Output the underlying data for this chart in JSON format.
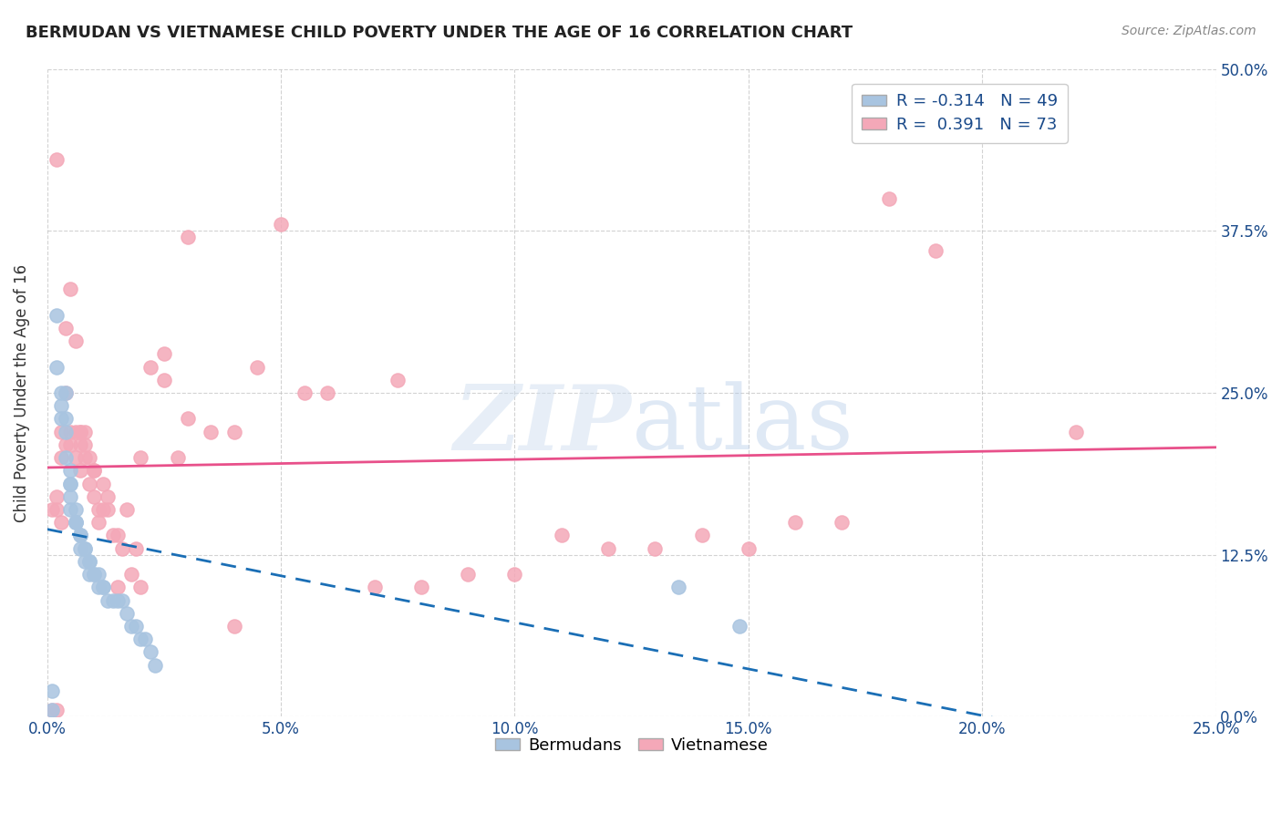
{
  "title": "BERMUDAN VS VIETNAMESE CHILD POVERTY UNDER THE AGE OF 16 CORRELATION CHART",
  "source": "Source: ZipAtlas.com",
  "ylabel": "Child Poverty Under the Age of 16",
  "xlabel_ticks": [
    "0.0%",
    "5.0%",
    "10.0%",
    "15.0%",
    "20.0%",
    "25.0%"
  ],
  "xlabel_vals": [
    0.0,
    0.05,
    0.1,
    0.15,
    0.2,
    0.25
  ],
  "ylabel_ticks": [
    "0.0%",
    "12.5%",
    "25.0%",
    "37.5%",
    "50.0%"
  ],
  "ylabel_vals": [
    0.0,
    0.125,
    0.25,
    0.375,
    0.5
  ],
  "xlim": [
    0.0,
    0.25
  ],
  "ylim": [
    0.0,
    0.5
  ],
  "bermuda_color": "#a8c4e0",
  "vietnamese_color": "#f4a8b8",
  "bermuda_line_color": "#1a6eb5",
  "vietnamese_line_color": "#e8508a",
  "legend_box_color": "#f0f0f0",
  "watermark": "ZIPatlas",
  "legend_r_bermuda": "R = -0.314",
  "legend_n_bermuda": "N = 49",
  "legend_r_vietnamese": "R =  0.391",
  "legend_n_vietnamese": "N = 73",
  "bermuda_R": -0.314,
  "bermuda_N": 49,
  "vietnamese_R": 0.391,
  "vietnamese_N": 73,
  "bermuda_x": [
    0.001,
    0.002,
    0.002,
    0.003,
    0.003,
    0.003,
    0.004,
    0.004,
    0.004,
    0.004,
    0.005,
    0.005,
    0.005,
    0.005,
    0.005,
    0.006,
    0.006,
    0.006,
    0.006,
    0.007,
    0.007,
    0.007,
    0.007,
    0.008,
    0.008,
    0.008,
    0.009,
    0.009,
    0.009,
    0.01,
    0.01,
    0.011,
    0.011,
    0.012,
    0.012,
    0.013,
    0.014,
    0.015,
    0.016,
    0.017,
    0.018,
    0.019,
    0.02,
    0.021,
    0.022,
    0.023,
    0.135,
    0.148,
    0.001
  ],
  "bermuda_y": [
    0.02,
    0.31,
    0.27,
    0.25,
    0.24,
    0.23,
    0.25,
    0.23,
    0.22,
    0.2,
    0.19,
    0.18,
    0.18,
    0.17,
    0.16,
    0.16,
    0.15,
    0.15,
    0.15,
    0.14,
    0.14,
    0.14,
    0.13,
    0.13,
    0.13,
    0.12,
    0.12,
    0.12,
    0.11,
    0.11,
    0.11,
    0.11,
    0.1,
    0.1,
    0.1,
    0.09,
    0.09,
    0.09,
    0.09,
    0.08,
    0.07,
    0.07,
    0.06,
    0.06,
    0.05,
    0.04,
    0.1,
    0.07,
    0.005
  ],
  "vietnamese_x": [
    0.001,
    0.002,
    0.002,
    0.003,
    0.003,
    0.004,
    0.004,
    0.004,
    0.005,
    0.005,
    0.006,
    0.006,
    0.006,
    0.007,
    0.007,
    0.007,
    0.008,
    0.008,
    0.008,
    0.009,
    0.009,
    0.01,
    0.01,
    0.011,
    0.011,
    0.012,
    0.012,
    0.013,
    0.013,
    0.014,
    0.015,
    0.016,
    0.017,
    0.018,
    0.019,
    0.02,
    0.022,
    0.025,
    0.028,
    0.03,
    0.035,
    0.04,
    0.045,
    0.05,
    0.055,
    0.06,
    0.07,
    0.075,
    0.08,
    0.09,
    0.1,
    0.11,
    0.12,
    0.13,
    0.14,
    0.15,
    0.16,
    0.17,
    0.18,
    0.19,
    0.002,
    0.003,
    0.005,
    0.007,
    0.01,
    0.015,
    0.02,
    0.025,
    0.03,
    0.04,
    0.22,
    0.001,
    0.002
  ],
  "vietnamese_y": [
    0.16,
    0.43,
    0.16,
    0.15,
    0.2,
    0.21,
    0.3,
    0.25,
    0.22,
    0.33,
    0.29,
    0.22,
    0.2,
    0.19,
    0.21,
    0.22,
    0.2,
    0.22,
    0.21,
    0.18,
    0.2,
    0.19,
    0.17,
    0.16,
    0.15,
    0.16,
    0.18,
    0.16,
    0.17,
    0.14,
    0.14,
    0.13,
    0.16,
    0.11,
    0.13,
    0.1,
    0.27,
    0.26,
    0.2,
    0.23,
    0.22,
    0.22,
    0.27,
    0.38,
    0.25,
    0.25,
    0.1,
    0.26,
    0.1,
    0.11,
    0.11,
    0.14,
    0.13,
    0.13,
    0.14,
    0.13,
    0.15,
    0.15,
    0.4,
    0.36,
    0.17,
    0.22,
    0.21,
    0.22,
    0.19,
    0.1,
    0.2,
    0.28,
    0.37,
    0.07,
    0.22,
    0.005,
    0.005
  ]
}
